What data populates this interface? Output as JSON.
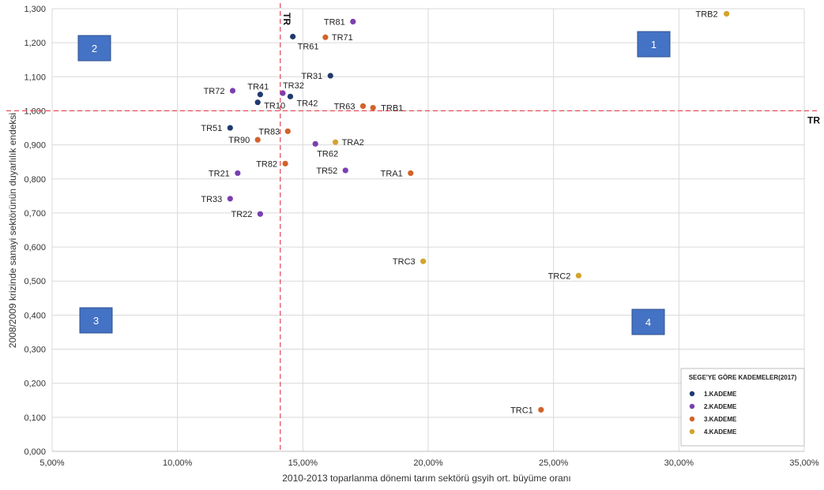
{
  "chart_data": {
    "type": "scatter",
    "xlabel": "2010-2013 toparlanma dönemi tarım sektörü gsyih ort. büyüme oranı",
    "ylabel": "2008/2009 krizinde sanayi sektörünün duyarlılık endeksi",
    "xlim": [
      0.05,
      0.35
    ],
    "ylim": [
      0,
      1.3
    ],
    "xticks": [
      "5,00%",
      "10,00%",
      "15,00%",
      "20,00%",
      "25,00%",
      "30,00%",
      "35,00%"
    ],
    "yticks": [
      "0,000",
      "0,100",
      "0,200",
      "0,300",
      "0,400",
      "0,500",
      "0,600",
      "0,700",
      "0,800",
      "0,900",
      "1,000",
      "1,100",
      "1,200",
      "1,300"
    ],
    "grid": true,
    "reference_lines": {
      "vertical": {
        "x": 0.141,
        "label": "TR"
      },
      "horizontal": {
        "y": 1.0,
        "label": "TR"
      }
    },
    "quadrants": [
      "1",
      "2",
      "3",
      "4"
    ],
    "legend": {
      "title": "SEGE'YE GÖRE KADEMELER(2017)",
      "position": "bottom-right",
      "entries": [
        {
          "name": "1.KADEME",
          "color": "#1f3a6e"
        },
        {
          "name": "2.KADEME",
          "color": "#7b3fb0"
        },
        {
          "name": "3.KADEME",
          "color": "#d2622a"
        },
        {
          "name": "4.KADEME",
          "color": "#d4a32c"
        }
      ]
    },
    "series": [
      {
        "name": "1.KADEME",
        "points": [
          {
            "label": "TR61",
            "x": 0.146,
            "y": 1.218
          },
          {
            "label": "TR31",
            "x": 0.161,
            "y": 1.103
          },
          {
            "label": "TR41",
            "x": 0.133,
            "y": 1.048
          },
          {
            "label": "TR42",
            "x": 0.145,
            "y": 1.042
          },
          {
            "label": "TR10",
            "x": 0.132,
            "y": 1.025
          },
          {
            "label": "TR51",
            "x": 0.121,
            "y": 0.95
          }
        ]
      },
      {
        "name": "2.KADEME",
        "points": [
          {
            "label": "TR81",
            "x": 0.17,
            "y": 1.262
          },
          {
            "label": "TR72",
            "x": 0.122,
            "y": 1.059
          },
          {
            "label": "TR32",
            "x": 0.142,
            "y": 1.052
          },
          {
            "label": "TR62",
            "x": 0.155,
            "y": 0.903
          },
          {
            "label": "TR52",
            "x": 0.167,
            "y": 0.825
          },
          {
            "label": "TR21",
            "x": 0.124,
            "y": 0.817
          },
          {
            "label": "TR33",
            "x": 0.121,
            "y": 0.742
          },
          {
            "label": "TR22",
            "x": 0.133,
            "y": 0.697
          }
        ]
      },
      {
        "name": "3.KADEME",
        "points": [
          {
            "label": "TR71",
            "x": 0.159,
            "y": 1.216
          },
          {
            "label": "TR63",
            "x": 0.174,
            "y": 1.014
          },
          {
            "label": "TRB1",
            "x": 0.178,
            "y": 1.009
          },
          {
            "label": "TR83",
            "x": 0.144,
            "y": 0.94
          },
          {
            "label": "TR90",
            "x": 0.132,
            "y": 0.915
          },
          {
            "label": "TR82",
            "x": 0.143,
            "y": 0.845
          },
          {
            "label": "TRA1",
            "x": 0.193,
            "y": 0.817
          },
          {
            "label": "TRC1",
            "x": 0.245,
            "y": 0.122
          }
        ]
      },
      {
        "name": "4.KADEME",
        "points": [
          {
            "label": "TRB2",
            "x": 0.319,
            "y": 1.285
          },
          {
            "label": "TRA2",
            "x": 0.163,
            "y": 0.908
          },
          {
            "label": "TRC3",
            "x": 0.198,
            "y": 0.558
          },
          {
            "label": "TRC2",
            "x": 0.26,
            "y": 0.516
          }
        ]
      }
    ]
  }
}
